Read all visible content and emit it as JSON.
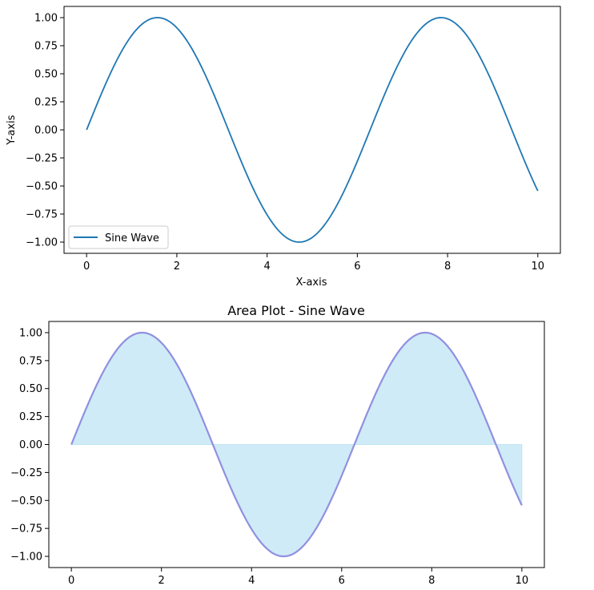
{
  "chart_data": [
    {
      "type": "line",
      "title": "",
      "xlabel": "X-axis",
      "ylabel": "Y-axis",
      "xlim": [
        -0.5,
        10.5
      ],
      "ylim": [
        -1.1,
        1.1
      ],
      "x_ticks": [
        0,
        2,
        4,
        6,
        8,
        10
      ],
      "y_ticks": [
        -1.0,
        -0.75,
        -0.5,
        -0.25,
        0.0,
        0.25,
        0.5,
        0.75,
        1.0
      ],
      "x_tick_labels": [
        "0",
        "2",
        "4",
        "6",
        "8",
        "10"
      ],
      "y_tick_labels": [
        "−1.00",
        "−0.75",
        "−0.50",
        "−0.25",
        "0.00",
        "0.25",
        "0.50",
        "0.75",
        "1.00"
      ],
      "grid": false,
      "legend": "lower-left",
      "function": "sin(x)",
      "x_range": [
        0,
        10
      ],
      "series": [
        {
          "name": "Sine Wave",
          "color": "#1f77b4",
          "x": [
            0,
            0.5,
            1,
            1.5,
            1.5708,
            2,
            2.5,
            3,
            3.1416,
            3.5,
            4,
            4.5,
            4.7124,
            5,
            5.5,
            6,
            6.2832,
            6.5,
            7,
            7.5,
            7.854,
            8,
            8.5,
            9,
            9.4248,
            9.5,
            10
          ],
          "y": [
            0,
            0.479,
            0.841,
            0.997,
            1.0,
            0.909,
            0.598,
            0.141,
            0.0,
            -0.351,
            -0.757,
            -0.978,
            -1.0,
            -0.959,
            -0.706,
            -0.279,
            0.0,
            0.215,
            0.657,
            0.938,
            1.0,
            0.989,
            0.798,
            0.412,
            0.0,
            -0.075,
            -0.544
          ]
        }
      ]
    },
    {
      "type": "area",
      "title": "Area Plot - Sine Wave",
      "xlabel": "",
      "ylabel": "",
      "xlim": [
        -0.5,
        10.5
      ],
      "ylim": [
        -1.1,
        1.1
      ],
      "x_ticks": [
        0,
        2,
        4,
        6,
        8,
        10
      ],
      "y_ticks": [
        -1.0,
        -0.75,
        -0.5,
        -0.25,
        0.0,
        0.25,
        0.5,
        0.75,
        1.0
      ],
      "x_tick_labels": [
        "0",
        "2",
        "4",
        "6",
        "8",
        "10"
      ],
      "y_tick_labels": [
        "−1.00",
        "−0.75",
        "−0.50",
        "−0.25",
        "0.00",
        "0.25",
        "0.50",
        "0.75",
        "1.00"
      ],
      "grid": false,
      "function": "sin(x)",
      "x_range": [
        0,
        10
      ],
      "fill_to": 0,
      "fill_color": "#87ceeb",
      "line_color": "#9090e0",
      "series": [
        {
          "x": [
            0,
            0.5,
            1,
            1.5,
            1.5708,
            2,
            2.5,
            3,
            3.1416,
            3.5,
            4,
            4.5,
            4.7124,
            5,
            5.5,
            6,
            6.2832,
            6.5,
            7,
            7.5,
            7.854,
            8,
            8.5,
            9,
            9.4248,
            9.5,
            10
          ],
          "y": [
            0,
            0.479,
            0.841,
            0.997,
            1.0,
            0.909,
            0.598,
            0.141,
            0.0,
            -0.351,
            -0.757,
            -0.978,
            -1.0,
            -0.959,
            -0.706,
            -0.279,
            0.0,
            0.215,
            0.657,
            0.938,
            1.0,
            0.989,
            0.798,
            0.412,
            0.0,
            -0.075,
            -0.544
          ]
        }
      ]
    }
  ]
}
